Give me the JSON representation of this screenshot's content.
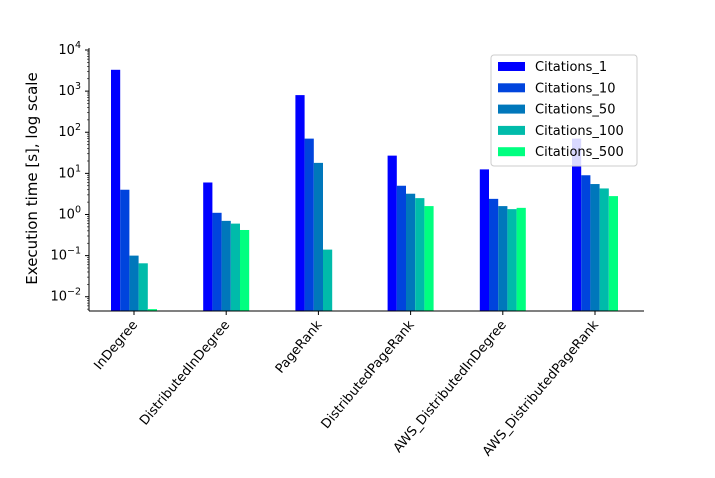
{
  "chart_data": {
    "type": "bar",
    "yscale": "log",
    "ylim": [
      0.0045,
      10000
    ],
    "ylabel": "Execution time [s], log scale",
    "xlabel": "",
    "title": "",
    "yticks": [
      {
        "value": 0.01,
        "base": "10",
        "exp": "−2"
      },
      {
        "value": 0.1,
        "base": "10",
        "exp": "−1"
      },
      {
        "value": 1,
        "base": "10",
        "exp": "0"
      },
      {
        "value": 10,
        "base": "10",
        "exp": "1"
      },
      {
        "value": 100,
        "base": "10",
        "exp": "2"
      },
      {
        "value": 1000,
        "base": "10",
        "exp": "3"
      },
      {
        "value": 10000,
        "base": "10",
        "exp": "4"
      }
    ],
    "categories": [
      "InDegree",
      "DistributedInDegree",
      "PageRank",
      "DistributedPageRank",
      "AWS_DistributedInDegree",
      "AWS_DistributedPageRank"
    ],
    "legend_position": "top-right",
    "grid": false,
    "series": [
      {
        "name": "Citations_1",
        "color": "#0000ff",
        "values": [
          3300,
          6,
          800,
          27,
          12.5,
          70
        ]
      },
      {
        "name": "Citations_10",
        "color": "#0044dd",
        "values": [
          4,
          1.1,
          70,
          5,
          2.4,
          9
        ]
      },
      {
        "name": "Citations_50",
        "color": "#0077bb",
        "values": [
          0.1,
          0.7,
          18,
          3.2,
          1.6,
          5.5
        ]
      },
      {
        "name": "Citations_100",
        "color": "#00bbaa",
        "values": [
          0.065,
          0.6,
          0.14,
          2.5,
          1.35,
          4.3
        ]
      },
      {
        "name": "Citations_500",
        "color": "#00ff80",
        "values": [
          0.005,
          0.42,
          null,
          1.6,
          1.45,
          2.8
        ]
      }
    ]
  }
}
